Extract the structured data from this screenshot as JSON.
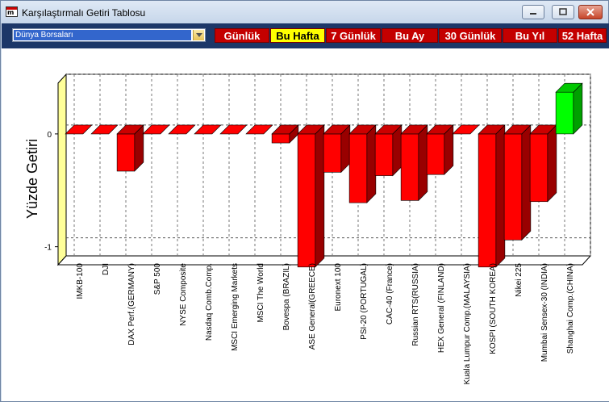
{
  "window": {
    "title": "Karşılaştırmalı Getiri Tablosu"
  },
  "dropdown": {
    "selected": "Dünya Borsaları"
  },
  "tabs": [
    "Günlük",
    "Bu Hafta",
    "7 Günlük",
    "Bu Ay",
    "30 Günlük",
    "Bu Yıl",
    "52 Hafta"
  ],
  "active_tab": "Bu Hafta",
  "colors": {
    "negative": "#ff0000",
    "positive": "#00ff00",
    "tab": "#c40000",
    "tab_active": "#ffff00",
    "toolbar": "#1c3768",
    "wall": "#ffff99"
  },
  "chart_data": {
    "type": "bar",
    "ylabel": "Yüzde Getiri",
    "yticks": [
      "0",
      "-1"
    ],
    "ylim": [
      -1.16,
      0.45
    ],
    "grid": true,
    "categories": [
      "IMKB-100",
      "DJI",
      "DAX Perf.(GERMANY)",
      "S&P 500",
      "NYSE Composite",
      "Nasdaq Comb.Comp.",
      "MSCI Emerging Markets",
      "MSCI The World",
      "Bovespa (BRAZIL)",
      "ASE General(GREECE)",
      "Euronext 100",
      "PSI-20 (PORTUGAL)",
      "CAC-40 (France)",
      "Russian RTS(RUSSIA)",
      "HEX General (FINLAND)",
      "Kuala Lumpur Comp.(MALAYSIA)",
      "KOSPI (SOUTH KOREA)",
      "Nikei 225",
      "Mumbai Sensex-30 (INDIA)",
      "Shanghai Comp.(CHINA)"
    ],
    "values": [
      0,
      0,
      -0.33,
      0,
      0,
      0,
      0,
      0,
      -0.08,
      -1.18,
      -0.34,
      -0.61,
      -0.37,
      -0.59,
      -0.36,
      0,
      -1.18,
      -0.94,
      -0.6,
      0.37
    ]
  }
}
